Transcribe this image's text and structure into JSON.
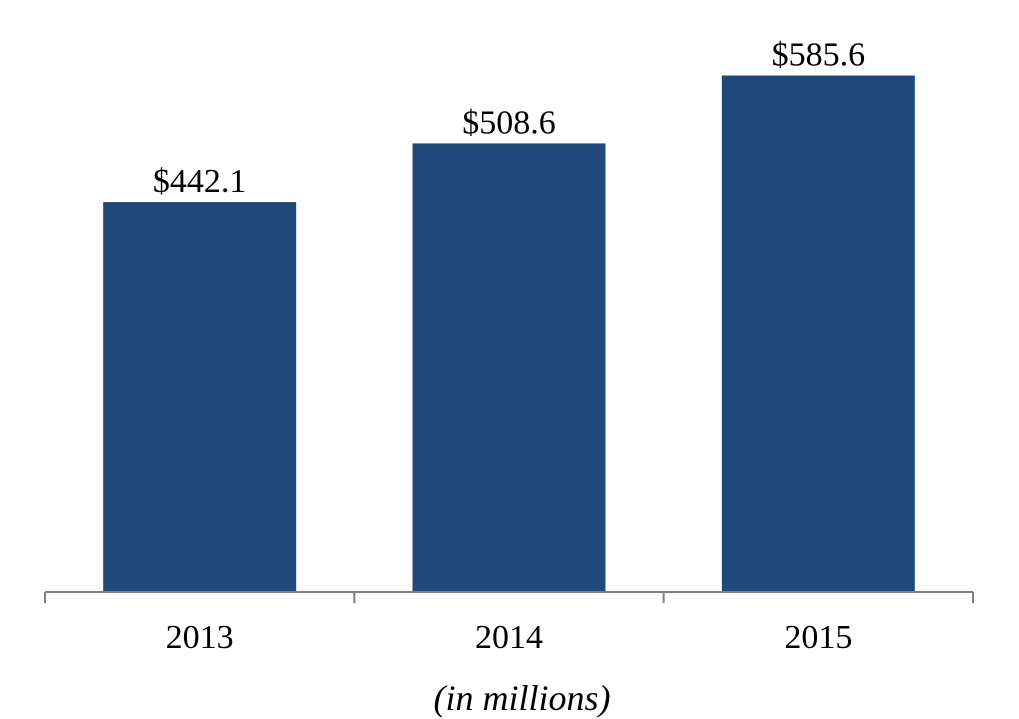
{
  "chart_data": {
    "type": "bar",
    "categories": [
      "2013",
      "2014",
      "2015"
    ],
    "values": [
      442.1,
      508.6,
      585.6
    ],
    "data_labels": [
      "$442.1",
      "$508.6",
      "$585.6"
    ],
    "xlabel": "(in millions)",
    "ylabel": "",
    "ylim": [
      0,
      600
    ],
    "grid": false,
    "legend": "none",
    "bar_color": "#21497A",
    "axis_color": "#808080"
  }
}
